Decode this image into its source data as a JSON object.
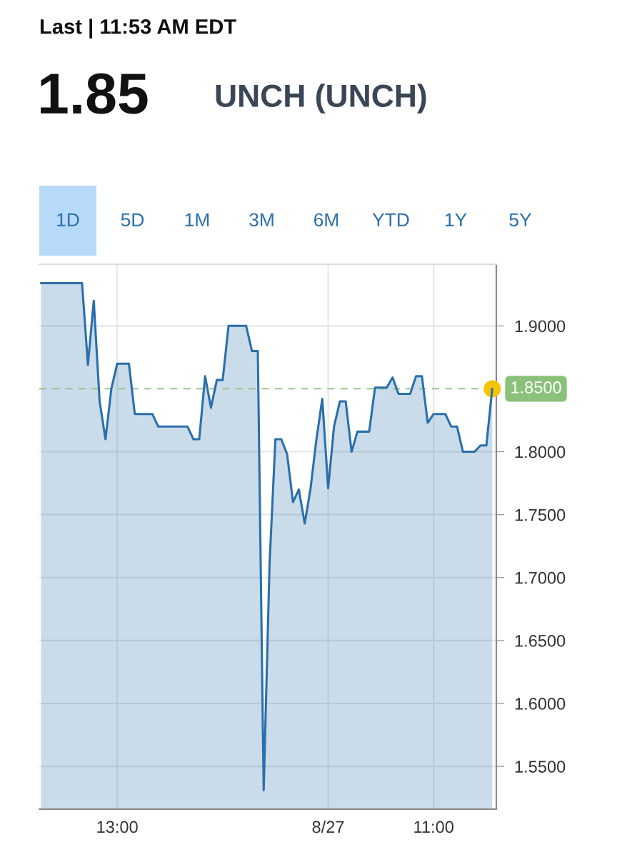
{
  "chart_data": {
    "type": "area",
    "title": "Last | 11:53 AM EDT",
    "annotations": [
      "1.85",
      "UNCH (UNCH)",
      "1D",
      "5D",
      "1M",
      "3M",
      "6M",
      "YTD",
      "1Y",
      "5Y"
    ],
    "categories": [
      null,
      null,
      null,
      null,
      null,
      null,
      null,
      null,
      null,
      null,
      null,
      null,
      null,
      "13:00",
      null,
      null,
      null,
      null,
      null,
      null,
      null,
      null,
      null,
      null,
      null,
      null,
      null,
      null,
      null,
      null,
      null,
      null,
      null,
      null,
      null,
      null,
      null,
      null,
      null,
      null,
      null,
      null,
      null,
      null,
      null,
      null,
      null,
      null,
      null,
      "8/27",
      null,
      null,
      null,
      null,
      null,
      null,
      null,
      null,
      null,
      null,
      null,
      null,
      null,
      null,
      null,
      null,
      null,
      "11:00",
      null,
      null,
      null,
      null,
      null,
      null,
      null,
      null,
      null,
      null
    ],
    "series": [
      {
        "color": "#2a6fab",
        "values": [
          1.934,
          1.934,
          1.934,
          1.934,
          1.934,
          1.934,
          1.934,
          1.934,
          1.869,
          1.92,
          1.84,
          1.81,
          1.85,
          1.87,
          1.87,
          1.87,
          1.83,
          1.83,
          1.83,
          1.83,
          1.82,
          1.82,
          1.82,
          1.82,
          1.82,
          1.82,
          1.81,
          1.81,
          1.86,
          1.835,
          1.857,
          1.857,
          1.9,
          1.9,
          1.9,
          1.9,
          1.88,
          1.88,
          1.531,
          1.711,
          1.81,
          1.81,
          1.798,
          1.76,
          1.77,
          1.743,
          1.771,
          1.81,
          1.842,
          1.771,
          1.82,
          1.84,
          1.84,
          1.8,
          1.816,
          1.816,
          1.816,
          1.851,
          1.851,
          1.851,
          1.859,
          1.846,
          1.846,
          1.846,
          1.86,
          1.86,
          1.823,
          1.83,
          1.83,
          1.83,
          1.82,
          1.82,
          1.8,
          1.8,
          1.8,
          1.805,
          1.805,
          1.85
        ]
      },
      {
        "type": "scatter",
        "color": "#f5c400",
        "marker": "circle",
        "values": [
          null,
          null,
          null,
          null,
          null,
          null,
          null,
          null,
          null,
          null,
          null,
          null,
          null,
          null,
          null,
          null,
          null,
          null,
          null,
          null,
          null,
          null,
          null,
          null,
          null,
          null,
          null,
          null,
          null,
          null,
          null,
          null,
          null,
          null,
          null,
          null,
          null,
          null,
          null,
          null,
          null,
          null,
          null,
          null,
          null,
          null,
          null,
          null,
          null,
          null,
          null,
          null,
          null,
          null,
          null,
          null,
          null,
          null,
          null,
          null,
          null,
          null,
          null,
          null,
          null,
          null,
          null,
          null,
          null,
          null,
          null,
          null,
          null,
          null,
          null,
          null,
          null,
          1.85
        ]
      }
    ],
    "ylim": [
      1.516,
      1.949
    ],
    "yticks": [
      {
        "value": 1.55,
        "label": "1.5500"
      },
      {
        "value": 1.6,
        "label": "1.6000"
      },
      {
        "value": 1.65,
        "label": "1.6500"
      },
      {
        "value": 1.7,
        "label": "1.7000"
      },
      {
        "value": 1.75,
        "label": "1.7500"
      },
      {
        "value": 1.8,
        "label": "1.8000"
      },
      {
        "value": 1.9,
        "label": "1.9000"
      }
    ],
    "ref_lines": [
      {
        "axis": "y",
        "value": 1.85,
        "label": "1.8500",
        "color": "#8bc17a",
        "line_style": "dashed"
      }
    ],
    "grid": true
  }
}
